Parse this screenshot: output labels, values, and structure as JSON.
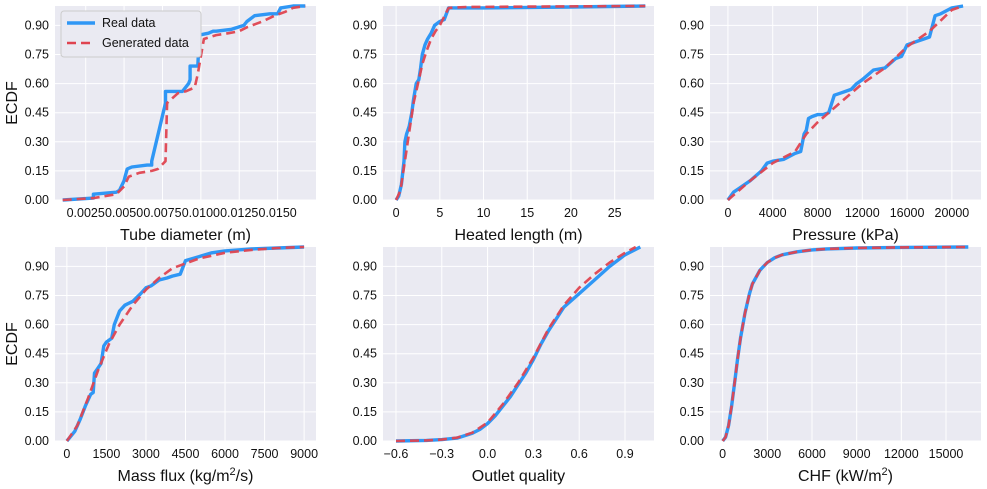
{
  "legend": {
    "real_label": "Real data",
    "generated_label": "Generated data",
    "real_color": "#2f97f5",
    "generated_color": "#df4450"
  },
  "style": {
    "panel_bg": "#eaeaf2",
    "grid_color": "#ffffff"
  },
  "chart_data": [
    {
      "type": "line",
      "xlabel": "Tube diameter (m)",
      "ylabel": "ECDF",
      "xlim": [
        0.0005,
        0.0175
      ],
      "ylim": [
        0,
        1.0
      ],
      "xticks": [
        0.0025,
        0.005,
        0.0075,
        0.01,
        0.0125,
        0.015
      ],
      "xtick_labels": [
        "0.0025",
        "0.0050",
        "0.0075",
        "0.0100",
        "0.0125",
        "0.0150"
      ],
      "yticks": [
        0,
        0.15,
        0.3,
        0.45,
        0.6,
        0.75,
        0.9
      ],
      "ytick_labels": [
        "0.00",
        "0.15",
        "0.30",
        "0.45",
        "0.60",
        "0.75",
        "0.90"
      ],
      "series": [
        {
          "name": "Real data",
          "x": [
            0.001,
            0.003,
            0.003,
            0.0045,
            0.0047,
            0.005,
            0.0051,
            0.0052,
            0.0055,
            0.0065,
            0.0068,
            0.0068,
            0.0077,
            0.0077,
            0.0078,
            0.0088,
            0.0092,
            0.0093,
            0.0093,
            0.0098,
            0.0099,
            0.0105,
            0.0108,
            0.011,
            0.012,
            0.0128,
            0.013,
            0.0135,
            0.0145,
            0.015,
            0.0152,
            0.016,
            0.0168
          ],
          "y": [
            0,
            0.01,
            0.03,
            0.04,
            0.05,
            0.1,
            0.13,
            0.16,
            0.17,
            0.18,
            0.18,
            0.2,
            0.5,
            0.56,
            0.56,
            0.56,
            0.6,
            0.62,
            0.69,
            0.69,
            0.85,
            0.86,
            0.87,
            0.87,
            0.88,
            0.9,
            0.92,
            0.95,
            0.96,
            0.96,
            0.99,
            1.0,
            1.0
          ]
        },
        {
          "name": "Generated data",
          "x": [
            0.001,
            0.003,
            0.0045,
            0.005,
            0.0053,
            0.006,
            0.0068,
            0.0072,
            0.0077,
            0.0078,
            0.0085,
            0.009,
            0.0096,
            0.0098,
            0.0102,
            0.011,
            0.0118,
            0.0125,
            0.013,
            0.014,
            0.0148,
            0.0155,
            0.016,
            0.0168
          ],
          "y": [
            0,
            0.01,
            0.03,
            0.07,
            0.12,
            0.14,
            0.15,
            0.16,
            0.2,
            0.5,
            0.55,
            0.56,
            0.58,
            0.65,
            0.83,
            0.85,
            0.86,
            0.87,
            0.89,
            0.92,
            0.95,
            0.97,
            0.99,
            1.0
          ]
        }
      ]
    },
    {
      "type": "line",
      "xlabel": "Heated length (m)",
      "ylabel": "",
      "xlim": [
        -1.5,
        29.5
      ],
      "ylim": [
        0,
        1.0
      ],
      "xticks": [
        0,
        5,
        10,
        15,
        20,
        25
      ],
      "xtick_labels": [
        "0",
        "5",
        "10",
        "15",
        "20",
        "25"
      ],
      "yticks": [
        0,
        0.15,
        0.3,
        0.45,
        0.6,
        0.75,
        0.9
      ],
      "ytick_labels": [
        "0.00",
        "0.15",
        "0.30",
        "0.45",
        "0.60",
        "0.75",
        "0.90"
      ],
      "series": [
        {
          "name": "Real data",
          "x": [
            0,
            0.3,
            0.6,
            0.9,
            1.0,
            1.2,
            1.5,
            1.8,
            2.0,
            2.3,
            2.6,
            2.8,
            3.0,
            3.3,
            3.6,
            4.0,
            4.4,
            5.0,
            5.5,
            6.0,
            10,
            20,
            28.5
          ],
          "y": [
            0,
            0.02,
            0.08,
            0.2,
            0.3,
            0.34,
            0.38,
            0.45,
            0.52,
            0.6,
            0.62,
            0.68,
            0.75,
            0.8,
            0.83,
            0.86,
            0.9,
            0.92,
            0.93,
            0.99,
            0.99,
            0.995,
            1.0
          ]
        },
        {
          "name": "Generated data",
          "x": [
            0,
            0.5,
            1.0,
            1.5,
            2.0,
            2.5,
            3.0,
            3.5,
            4.0,
            4.5,
            5.0,
            6.0,
            8.0,
            15,
            28.5
          ],
          "y": [
            0,
            0.05,
            0.2,
            0.35,
            0.5,
            0.6,
            0.7,
            0.77,
            0.83,
            0.87,
            0.9,
            0.99,
            0.995,
            0.997,
            1.0
          ]
        }
      ]
    },
    {
      "type": "line",
      "xlabel": "Pressure (kPa)",
      "ylabel": "",
      "xlim": [
        -1600,
        22600
      ],
      "ylim": [
        0,
        1.0
      ],
      "xticks": [
        0,
        4000,
        8000,
        12000,
        16000,
        20000
      ],
      "xtick_labels": [
        "0",
        "4000",
        "8000",
        "12000",
        "16000",
        "20000"
      ],
      "yticks": [
        0,
        0.15,
        0.3,
        0.45,
        0.6,
        0.75,
        0.9
      ],
      "ytick_labels": [
        "0.00",
        "0.15",
        "0.30",
        "0.45",
        "0.60",
        "0.75",
        "0.90"
      ],
      "series": [
        {
          "name": "Real data",
          "x": [
            0,
            500,
            1000,
            2000,
            3000,
            3500,
            4000,
            5000,
            6000,
            6500,
            6800,
            7000,
            7200,
            7500,
            8000,
            8500,
            9000,
            9500,
            10000,
            10500,
            11000,
            11500,
            12000,
            13000,
            14000,
            15000,
            15500,
            16000,
            16500,
            17000,
            17500,
            18000,
            18500,
            19000,
            20000,
            21000
          ],
          "y": [
            0,
            0.04,
            0.06,
            0.1,
            0.15,
            0.19,
            0.2,
            0.21,
            0.24,
            0.25,
            0.34,
            0.36,
            0.42,
            0.43,
            0.44,
            0.44,
            0.45,
            0.54,
            0.55,
            0.56,
            0.57,
            0.6,
            0.62,
            0.67,
            0.68,
            0.73,
            0.74,
            0.8,
            0.81,
            0.82,
            0.83,
            0.84,
            0.95,
            0.96,
            0.99,
            1.0
          ]
        },
        {
          "name": "Generated data",
          "x": [
            0,
            2000,
            4000,
            6000,
            7000,
            8000,
            10000,
            12000,
            14000,
            16000,
            18000,
            20000,
            21000
          ],
          "y": [
            0,
            0.1,
            0.19,
            0.25,
            0.34,
            0.4,
            0.5,
            0.6,
            0.68,
            0.79,
            0.87,
            0.98,
            1.0
          ]
        }
      ]
    },
    {
      "type": "line",
      "xlabel": "Mass flux (kg/m²/s)",
      "ylabel": "ECDF",
      "xlim": [
        -450,
        9450
      ],
      "ylim": [
        0,
        1.0
      ],
      "xticks": [
        0,
        1500,
        3000,
        4500,
        6000,
        7500,
        9000
      ],
      "xtick_labels": [
        "0",
        "1500",
        "3000",
        "4500",
        "6000",
        "7500",
        "9000"
      ],
      "yticks": [
        0,
        0.15,
        0.3,
        0.45,
        0.6,
        0.75,
        0.9
      ],
      "ytick_labels": [
        "0.00",
        "0.15",
        "0.30",
        "0.45",
        "0.60",
        "0.75",
        "0.90"
      ],
      "series": [
        {
          "name": "Real data",
          "x": [
            0,
            300,
            500,
            700,
            900,
            1000,
            1050,
            1200,
            1300,
            1400,
            1500,
            1700,
            1800,
            2000,
            2200,
            2500,
            2800,
            3000,
            3200,
            3500,
            3800,
            4000,
            4300,
            4500,
            5000,
            5500,
            6000,
            7000,
            8000,
            9000
          ],
          "y": [
            0,
            0.05,
            0.11,
            0.18,
            0.24,
            0.25,
            0.35,
            0.38,
            0.4,
            0.49,
            0.51,
            0.53,
            0.6,
            0.67,
            0.7,
            0.72,
            0.76,
            0.79,
            0.8,
            0.83,
            0.84,
            0.85,
            0.86,
            0.93,
            0.95,
            0.97,
            0.98,
            0.99,
            0.995,
            1.0
          ]
        },
        {
          "name": "Generated data",
          "x": [
            0,
            400,
            800,
            1200,
            1600,
            2000,
            2500,
            3000,
            3500,
            4000,
            5000,
            6000,
            7000,
            8000,
            9000
          ],
          "y": [
            0,
            0.08,
            0.22,
            0.37,
            0.5,
            0.6,
            0.7,
            0.78,
            0.84,
            0.89,
            0.94,
            0.97,
            0.985,
            0.995,
            1.0
          ]
        }
      ]
    },
    {
      "type": "line",
      "xlabel": "Outlet quality",
      "ylabel": "",
      "xlim": [
        -0.685,
        1.09
      ],
      "ylim": [
        0,
        1.0
      ],
      "xticks": [
        -0.6,
        -0.3,
        0.0,
        0.3,
        0.6,
        0.9
      ],
      "xtick_labels": [
        "−0.6",
        "−0.3",
        "0.0",
        "0.3",
        "0.6",
        "0.9"
      ],
      "yticks": [
        0,
        0.15,
        0.3,
        0.45,
        0.6,
        0.75,
        0.9
      ],
      "ytick_labels": [
        "0.00",
        "0.15",
        "0.30",
        "0.45",
        "0.60",
        "0.75",
        "0.90"
      ],
      "series": [
        {
          "name": "Real data",
          "x": [
            -0.6,
            -0.4,
            -0.3,
            -0.2,
            -0.1,
            -0.05,
            0.0,
            0.05,
            0.1,
            0.15,
            0.2,
            0.25,
            0.3,
            0.35,
            0.4,
            0.45,
            0.5,
            0.6,
            0.7,
            0.8,
            0.9,
            1.0
          ],
          "y": [
            0,
            0.003,
            0.007,
            0.015,
            0.04,
            0.06,
            0.09,
            0.13,
            0.18,
            0.23,
            0.29,
            0.35,
            0.42,
            0.5,
            0.57,
            0.63,
            0.69,
            0.76,
            0.83,
            0.9,
            0.96,
            1.0
          ]
        },
        {
          "name": "Generated data",
          "x": [
            -0.6,
            -0.4,
            -0.3,
            -0.2,
            -0.1,
            0.0,
            0.1,
            0.2,
            0.3,
            0.4,
            0.5,
            0.6,
            0.7,
            0.8,
            0.9,
            0.97
          ],
          "y": [
            0,
            0.003,
            0.007,
            0.017,
            0.043,
            0.095,
            0.19,
            0.3,
            0.43,
            0.58,
            0.7,
            0.79,
            0.86,
            0.92,
            0.97,
            1.0
          ]
        }
      ]
    },
    {
      "type": "line",
      "xlabel": "CHF (kW/m²)",
      "ylabel": "",
      "xlim": [
        -850,
        17350
      ],
      "ylim": [
        0,
        1.0
      ],
      "xticks": [
        0,
        3000,
        6000,
        9000,
        12000,
        15000
      ],
      "xtick_labels": [
        "0",
        "3000",
        "6000",
        "9000",
        "12000",
        "15000"
      ],
      "yticks": [
        0,
        0.15,
        0.3,
        0.45,
        0.6,
        0.75,
        0.9
      ],
      "ytick_labels": [
        "0.00",
        "0.15",
        "0.30",
        "0.45",
        "0.60",
        "0.75",
        "0.90"
      ],
      "series": [
        {
          "name": "Real data",
          "x": [
            0,
            200,
            400,
            600,
            800,
            1000,
            1200,
            1500,
            1800,
            2000,
            2500,
            3000,
            3500,
            4000,
            5000,
            6000,
            7000,
            9000,
            12000,
            16500
          ],
          "y": [
            0,
            0.02,
            0.08,
            0.18,
            0.3,
            0.42,
            0.53,
            0.66,
            0.76,
            0.81,
            0.88,
            0.92,
            0.945,
            0.96,
            0.975,
            0.985,
            0.99,
            0.995,
            0.998,
            1.0
          ]
        },
        {
          "name": "Generated data",
          "x": [
            0,
            200,
            400,
            600,
            800,
            1000,
            1200,
            1500,
            1800,
            2000,
            2500,
            3000,
            3500,
            4000,
            5000,
            6000,
            7000,
            9000,
            12000,
            16500
          ],
          "y": [
            0,
            0.02,
            0.08,
            0.18,
            0.3,
            0.42,
            0.53,
            0.66,
            0.76,
            0.81,
            0.88,
            0.92,
            0.945,
            0.96,
            0.975,
            0.985,
            0.99,
            0.995,
            0.998,
            1.0
          ]
        }
      ]
    }
  ]
}
